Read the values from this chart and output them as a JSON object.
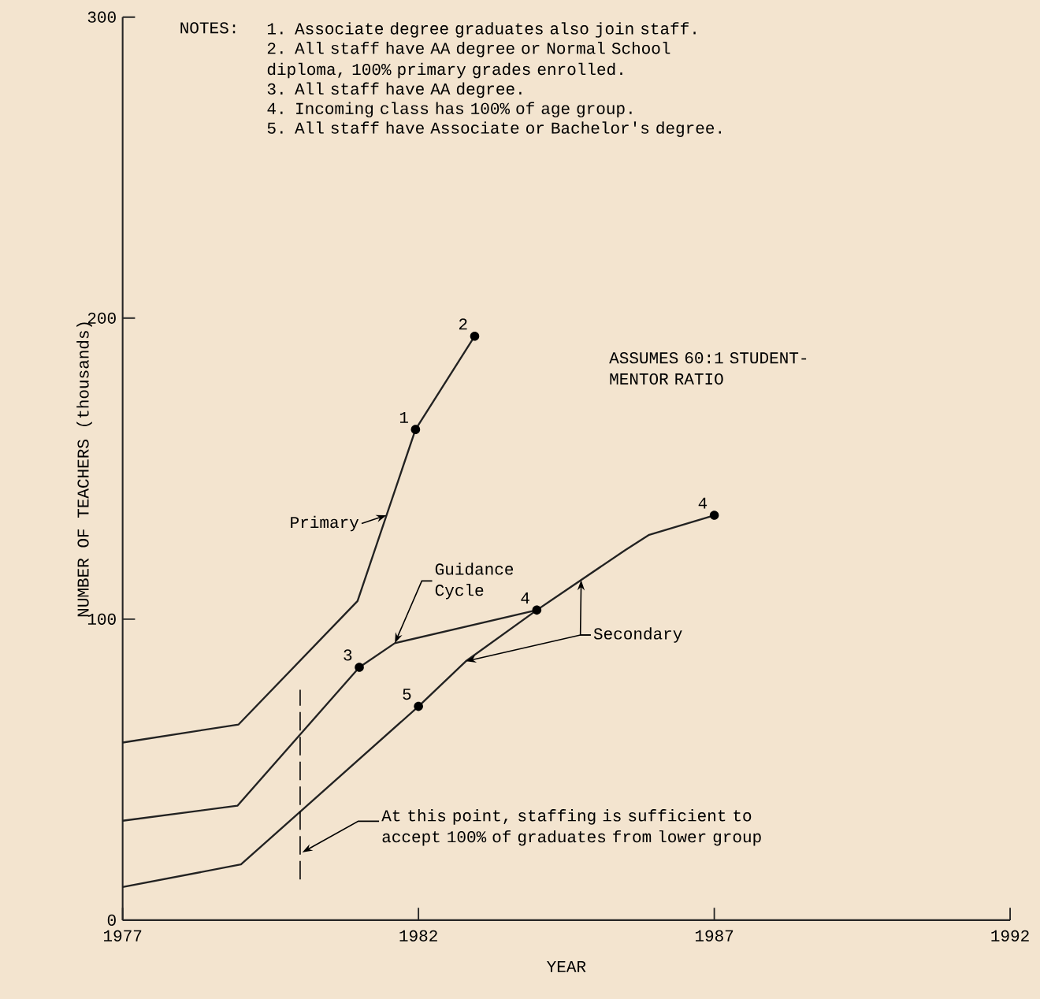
{
  "chart_data": {
    "type": "line",
    "xlabel": "YEAR",
    "ylabel": "NUMBER OF TEACHERS (thousands)",
    "xlim": [
      1977,
      1992
    ],
    "xticks": [
      1977,
      1982,
      1987,
      1992
    ],
    "ylim": [
      0,
      300
    ],
    "yticks": [
      0,
      100,
      200,
      300
    ],
    "ref_lines": [
      {
        "axis": "x",
        "value": 1980,
        "label": "At this point, staffing is sufficient to accept 100% of graduates from lower group",
        "line_style": "dashed"
      }
    ],
    "series": [
      {
        "name": "Primary",
        "color": "#222222",
        "x": [
          1977,
          1978.96,
          1980.97,
          1981.95,
          1982.95
        ],
        "values": [
          59,
          65,
          106,
          163,
          194
        ]
      },
      {
        "name": "Guidance Cycle",
        "color": "#222222",
        "x": [
          1977,
          1978.94,
          1981.0,
          1981.6,
          1984.0
        ],
        "values": [
          33,
          38,
          84,
          92,
          103
        ]
      },
      {
        "name": "Secondary",
        "color": "#222222",
        "x": [
          1977,
          1979.0,
          1982.0,
          1982.8,
          1984.0,
          1985.5,
          1985.9,
          1987.0
        ],
        "values": [
          11,
          18.5,
          71,
          86,
          103,
          123,
          128,
          134.5
        ]
      }
    ],
    "annotations": [
      "NOTES:",
      "1. Associate degree graduates also join staff.",
      "2. All staff have AA degree or Normal School diploma, 100% primary grades enrolled.",
      "3. All staff have AA degree.",
      "4. Incoming class has 100% of age group.",
      "5. All staff have Associate or Bachelor's degree.",
      "ASSUMES 60:1 STUDENT-MENTOR RATIO",
      {
        "text": "1",
        "x": 1981.95,
        "y": 163
      },
      {
        "text": "2",
        "x": 1982.95,
        "y": 194
      },
      {
        "text": "3",
        "x": 1981.0,
        "y": 84
      },
      {
        "text": "4",
        "x": 1984.0,
        "y": 103
      },
      {
        "text": "5",
        "x": 1982.0,
        "y": 71
      },
      {
        "text": "4",
        "x": 1987.0,
        "y": 134.5
      }
    ]
  }
}
